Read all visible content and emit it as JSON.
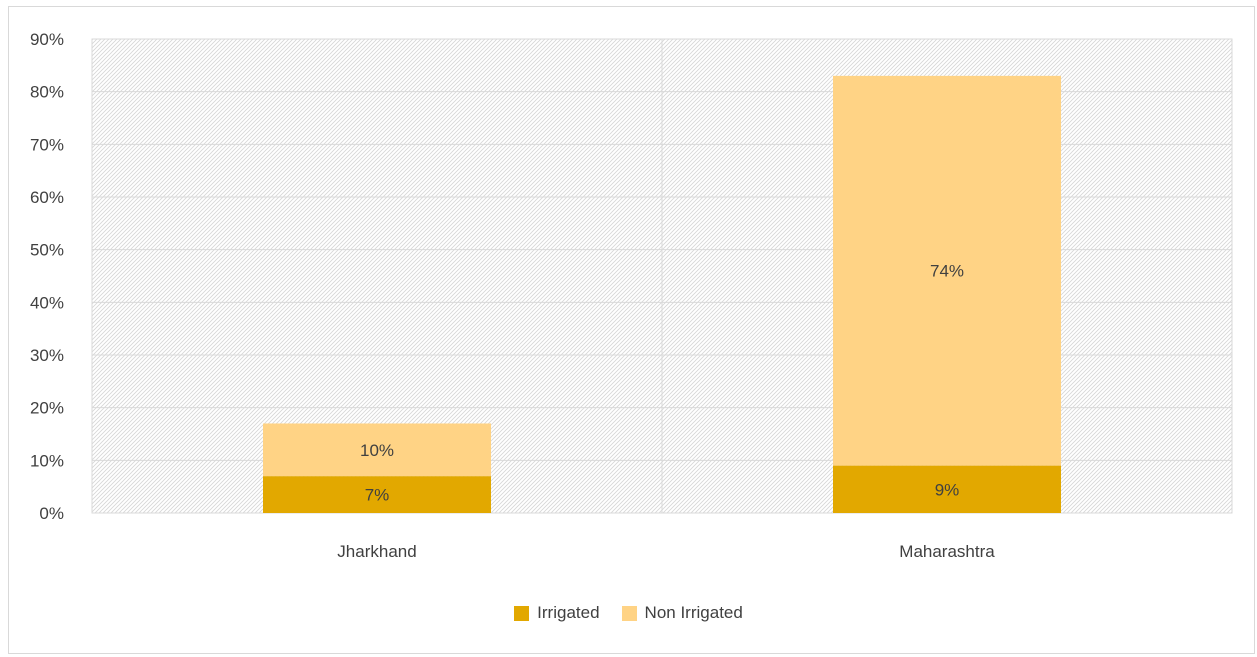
{
  "chart_data": {
    "type": "bar",
    "stacked": true,
    "categories": [
      "Jharkhand",
      "Maharashtra"
    ],
    "series": [
      {
        "name": "Irrigated",
        "values": [
          7,
          9
        ],
        "labels": [
          "7%",
          "9%"
        ],
        "color": "#E2A800"
      },
      {
        "name": "Non Irrigated",
        "values": [
          10,
          74
        ],
        "labels": [
          "10%",
          "74%"
        ],
        "color": "#FFD385"
      }
    ],
    "yticks": [
      "0%",
      "10%",
      "20%",
      "30%",
      "40%",
      "50%",
      "60%",
      "70%",
      "80%",
      "90%"
    ],
    "ylim": [
      0,
      90
    ],
    "grid": true,
    "legend_position": "bottom"
  }
}
